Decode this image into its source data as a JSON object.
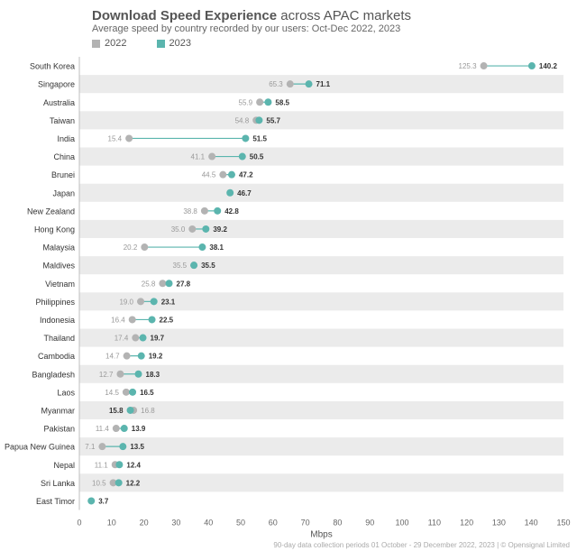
{
  "title_bold": "Download Speed Experience",
  "title_rest": " across APAC markets",
  "subtitle": "Average speed by country recorded by our users: Oct-Dec 2022, 2023",
  "footer": "90-day data collection periods 01 October - 29 December 2022, 2023 | © Opensignal Limited",
  "colors": {
    "series_2022": "#b3b3b3",
    "series_2023": "#5bb5ae",
    "band": "#ebebeb",
    "connector": "#5bb5ae"
  },
  "chart_data": {
    "type": "dumbbell",
    "xlabel": "Mbps",
    "xlim": [
      0,
      150
    ],
    "xticks": [
      0,
      10,
      20,
      30,
      40,
      50,
      60,
      70,
      80,
      90,
      100,
      110,
      120,
      130,
      140,
      150
    ],
    "legend_position": "top-left",
    "series": [
      {
        "name": "2022",
        "color": "#b3b3b3"
      },
      {
        "name": "2023",
        "color": "#5bb5ae"
      }
    ],
    "categories": [
      "South Korea",
      "Singapore",
      "Australia",
      "Taiwan",
      "India",
      "China",
      "Brunei",
      "Japan",
      "New Zealand",
      "Hong Kong",
      "Malaysia",
      "Maldives",
      "Vietnam",
      "Philippines",
      "Indonesia",
      "Thailand",
      "Cambodia",
      "Bangladesh",
      "Laos",
      "Myanmar",
      "Pakistan",
      "Papua New Guinea",
      "Nepal",
      "Sri Lanka",
      "East Timor"
    ],
    "values_2022": [
      125.3,
      65.3,
      55.9,
      54.8,
      15.4,
      41.1,
      44.5,
      null,
      38.8,
      35.0,
      20.2,
      35.5,
      25.8,
      19.0,
      16.4,
      17.4,
      14.7,
      12.7,
      14.5,
      16.8,
      11.4,
      7.1,
      11.1,
      10.5,
      null
    ],
    "values_2023": [
      140.2,
      71.1,
      58.5,
      55.7,
      51.5,
      50.5,
      47.2,
      46.7,
      42.8,
      39.2,
      38.1,
      35.5,
      27.8,
      23.1,
      22.5,
      19.7,
      19.2,
      18.3,
      16.5,
      15.8,
      13.9,
      13.5,
      12.4,
      12.2,
      3.7
    ],
    "labels_2022": [
      "125.3",
      "65.3",
      "55.9",
      "54.8",
      "15.4",
      "41.1",
      "44.5",
      "",
      "38.8",
      "35.0",
      "20.2",
      "35.5",
      "25.8",
      "19.0",
      "16.4",
      "17.4",
      "14.7",
      "12.7",
      "14.5",
      "16.8",
      "11.4",
      "7.1",
      "11.1",
      "10.5",
      ""
    ],
    "labels_2023": [
      "140.2",
      "71.1",
      "58.5",
      "55.7",
      "51.5",
      "50.5",
      "47.2",
      "46.7",
      "42.8",
      "39.2",
      "38.1",
      "35.5",
      "27.8",
      "23.1",
      "22.5",
      "19.7",
      "19.2",
      "18.3",
      "16.5",
      "15.8",
      "13.9",
      "13.5",
      "12.4",
      "12.2",
      "3.7"
    ]
  }
}
